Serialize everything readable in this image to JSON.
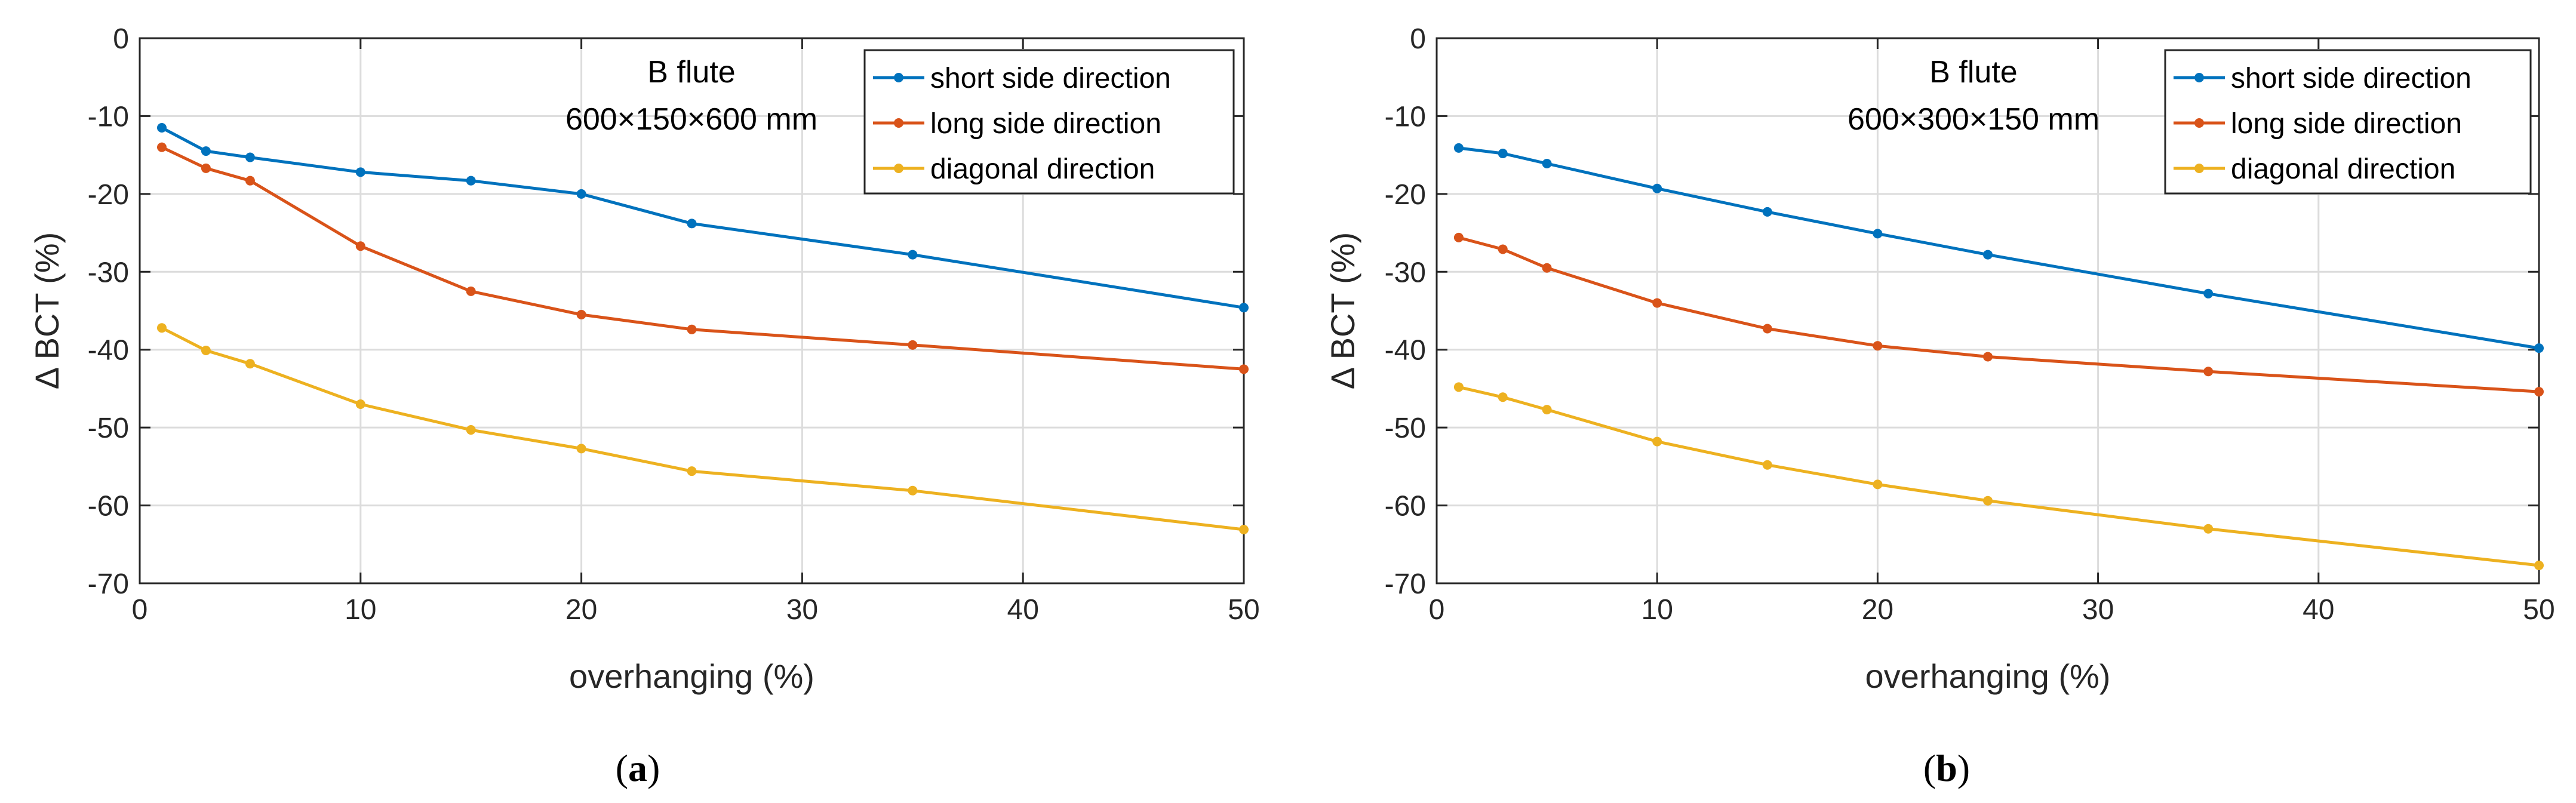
{
  "colors": {
    "short": "#0072BD",
    "long": "#D95319",
    "diagonal": "#EDB120",
    "grid": "#DCDCDC",
    "axis": "#262626"
  },
  "chart_data": [
    {
      "type": "line",
      "panel_label": "a",
      "annotation": {
        "line1": "B flute",
        "line2": "600×150×600 mm"
      },
      "xlabel": "overhanging (%)",
      "ylabel": "Δ BCT (%)",
      "xlim": [
        0,
        50
      ],
      "ylim": [
        -70,
        0
      ],
      "xticks": [
        0,
        10,
        20,
        30,
        40,
        50
      ],
      "yticks": [
        0,
        -10,
        -20,
        -30,
        -40,
        -50,
        -60,
        -70
      ],
      "grid": true,
      "legend_position": "top-right",
      "x": [
        1,
        3,
        5,
        10,
        15,
        20,
        25,
        35,
        50
      ],
      "series": [
        {
          "name": "short side direction",
          "color_key": "short",
          "values": [
            -11.5,
            -14.5,
            -15.3,
            -17.2,
            -18.3,
            -20,
            -23.8,
            -27.8,
            -34.6
          ]
        },
        {
          "name": "long side direction",
          "color_key": "long",
          "values": [
            -14,
            -16.7,
            -18.3,
            -26.7,
            -32.5,
            -35.5,
            -37.4,
            -39.4,
            -42.5
          ]
        },
        {
          "name": "diagonal direction",
          "color_key": "diagonal",
          "values": [
            -37.2,
            -40.1,
            -41.8,
            -47,
            -50.3,
            -52.7,
            -55.6,
            -58.1,
            -63.1
          ]
        }
      ]
    },
    {
      "type": "line",
      "panel_label": "b",
      "annotation": {
        "line1": "B flute",
        "line2": "600×300×150 mm"
      },
      "xlabel": "overhanging (%)",
      "ylabel": "Δ BCT (%)",
      "xlim": [
        0,
        50
      ],
      "ylim": [
        -70,
        0
      ],
      "xticks": [
        0,
        10,
        20,
        30,
        40,
        50
      ],
      "yticks": [
        0,
        -10,
        -20,
        -30,
        -40,
        -50,
        -60,
        -70
      ],
      "grid": true,
      "legend_position": "top-right",
      "x": [
        1,
        3,
        5,
        10,
        15,
        20,
        25,
        35,
        50
      ],
      "series": [
        {
          "name": "short side direction",
          "color_key": "short",
          "values": [
            -14.1,
            -14.8,
            -16.1,
            -19.3,
            -22.3,
            -25.1,
            -27.8,
            -32.8,
            -39.8
          ]
        },
        {
          "name": "long side direction",
          "color_key": "long",
          "values": [
            -25.6,
            -27.1,
            -29.5,
            -34,
            -37.3,
            -39.5,
            -40.9,
            -42.8,
            -45.4
          ]
        },
        {
          "name": "diagonal direction",
          "color_key": "diagonal",
          "values": [
            -44.8,
            -46.1,
            -47.7,
            -51.8,
            -54.8,
            -57.3,
            -59.4,
            -63,
            -67.7
          ]
        }
      ]
    }
  ]
}
